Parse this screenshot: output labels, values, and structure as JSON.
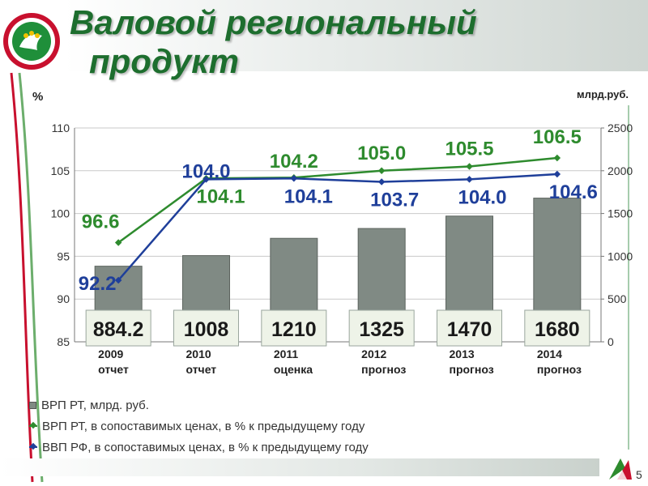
{
  "title_line1": "Валовой региональный",
  "title_line2": "продукт",
  "page_number": "5",
  "icons": {
    "emblem": "tatarstan-emblem-icon",
    "corner_logo": "tatarstan-mini-logo-icon"
  },
  "colors": {
    "title": "#1d6e2e",
    "bar": "#808a84",
    "series_rt": "#2e8b2e",
    "series_rf": "#1f3f9a"
  },
  "chart_data": {
    "type": "bar",
    "categories": [
      "2009\nотчет",
      "2010\nотчет",
      "2011\nоценка",
      "2012\nпрогноз",
      "2013\nпрогноз",
      "2014\nпрогноз"
    ],
    "left_axis": {
      "label": "%",
      "ylim": [
        85,
        110
      ],
      "ticks": [
        "85",
        "90",
        "95",
        "100",
        "105",
        "110"
      ]
    },
    "right_axis": {
      "label": "млрд.руб.",
      "ylim": [
        0,
        2500
      ],
      "ticks": [
        "0",
        "500",
        "1000",
        "1500",
        "2000",
        "2500"
      ]
    },
    "series": [
      {
        "name": "ВРП РТ, млрд. руб.",
        "kind": "bar",
        "axis": "right",
        "values": [
          884.2,
          1008,
          1210,
          1325,
          1470,
          1680
        ],
        "labels": [
          "884.2",
          "1008",
          "1210",
          "1325",
          "1470",
          "1680"
        ]
      },
      {
        "name": "ВРП РТ, в сопоставимых ценах, в % к предыдущему году",
        "kind": "line",
        "axis": "left",
        "values": [
          96.6,
          104.1,
          104.2,
          105.0,
          105.5,
          106.5
        ],
        "labels": [
          "96.6",
          "104.1",
          "104.2",
          "105.0",
          "105.5",
          "106.5"
        ]
      },
      {
        "name": "ВВП РФ, в сопоставимых ценах, в % к предыдущему году",
        "kind": "line",
        "axis": "left",
        "values": [
          92.2,
          104.0,
          104.1,
          103.7,
          104.0,
          104.6
        ],
        "labels": [
          "92.2",
          "104.0",
          "104.1",
          "103.7",
          "104.0",
          "104.6"
        ]
      }
    ],
    "grid": true,
    "legend_position": "bottom"
  }
}
